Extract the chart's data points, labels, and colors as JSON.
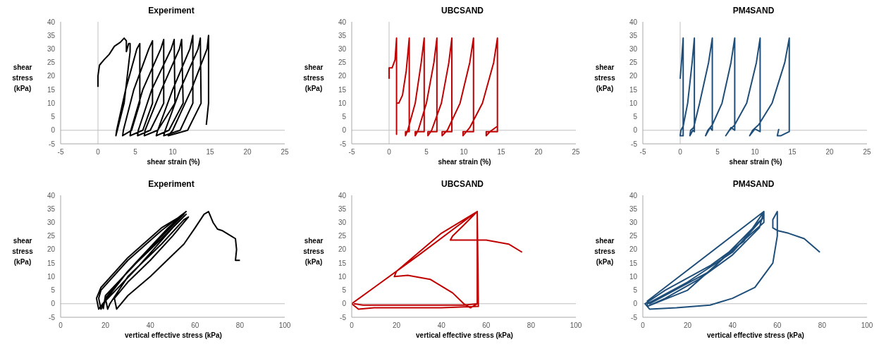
{
  "chart_data": [
    {
      "type": "line",
      "title": "Experiment",
      "xlabel": "shear strain (%)",
      "ylabel": "shear stress (kPa)",
      "xlim": [
        -5,
        25
      ],
      "xticks": [
        -5,
        0,
        5,
        10,
        15,
        20,
        25
      ],
      "ylim": [
        -5,
        40
      ],
      "yticks": [
        -5,
        0,
        5,
        10,
        15,
        20,
        25,
        30,
        35,
        40
      ],
      "marker": "none",
      "ref_lines": [
        {
          "axis": "x",
          "value": 0,
          "color": "#bfbfbf"
        },
        {
          "axis": "y",
          "value": 0,
          "color": "#bfbfbf"
        }
      ],
      "series": [
        {
          "color": "#000000",
          "x": [
            0,
            0,
            0.2,
            0.8,
            1.5,
            2.2,
            3,
            3.5,
            3.8,
            3.8,
            4.1,
            4.3,
            4.3,
            3.5,
            2.4,
            2.5,
            3.7,
            5.2,
            5.6,
            5.6,
            4.5,
            3.3,
            3.4,
            4.8,
            6.8,
            7.3,
            7.3,
            6,
            4.3,
            4.4,
            6,
            8.4,
            8.8,
            8.8,
            7,
            5.3,
            5.4,
            7.2,
            9.8,
            10.2,
            10.3,
            8,
            6.2,
            6.3,
            8.5,
            10.9,
            11.2,
            11.4,
            9.5,
            7.8,
            8,
            10,
            12.3,
            12.7,
            12.7,
            11,
            8.8,
            9,
            11,
            13.4,
            13.7,
            13.8,
            12,
            9.4,
            10,
            12.5,
            14.6,
            14.8,
            14.8,
            14.5
          ],
          "values": [
            16,
            20,
            24,
            26,
            28,
            31,
            32.5,
            34,
            33,
            29,
            32,
            32,
            29,
            10,
            -2,
            0,
            15,
            30,
            32,
            10,
            0,
            -2,
            0,
            15,
            30,
            33,
            10,
            0,
            -2,
            0,
            15,
            30,
            33.5,
            10,
            0,
            -2,
            0,
            15,
            30,
            33.5,
            10,
            0,
            -2,
            0,
            15,
            30,
            33.5,
            10,
            0,
            -2,
            0,
            15,
            30,
            35,
            10,
            0,
            -2,
            0,
            15,
            30,
            34,
            10,
            0,
            -2,
            0,
            15,
            30,
            35,
            10,
            2
          ]
        }
      ]
    },
    {
      "type": "line",
      "title": "UBCSAND",
      "xlabel": "shear strain (%)",
      "ylabel": "shear stress (kPa)",
      "xlim": [
        -5,
        25
      ],
      "xticks": [
        -5,
        0,
        5,
        10,
        15,
        20,
        25
      ],
      "ylim": [
        -5,
        40
      ],
      "yticks": [
        -5,
        0,
        5,
        10,
        15,
        20,
        25,
        30,
        35,
        40
      ],
      "marker": "none",
      "ref_lines": [
        {
          "axis": "x",
          "value": 0,
          "color": "#bfbfbf"
        },
        {
          "axis": "y",
          "value": 0,
          "color": "#bfbfbf"
        }
      ],
      "series": [
        {
          "color": "#c00000",
          "x": [
            0,
            0,
            0.4,
            0.8,
            1,
            1,
            1,
            1.3,
            1.8,
            2.3,
            2.7,
            2.7,
            2.2,
            2.2,
            2.5,
            3.5,
            4.3,
            4.7,
            4.7,
            3.5,
            3.5,
            3.9,
            5,
            6,
            6.4,
            6.4,
            5.2,
            5.2,
            5.7,
            7,
            8,
            8.4,
            8.4,
            7.1,
            7.1,
            7.8,
            9.5,
            10.8,
            11.3,
            11.3,
            9.9,
            9.9,
            10.8,
            12.5,
            14,
            14.5,
            14.5,
            13,
            13,
            13.5,
            14.5
          ],
          "values": [
            19,
            23,
            23,
            26,
            34,
            -1.5,
            10,
            10,
            13,
            22,
            34,
            -0.5,
            -0.5,
            -2,
            0,
            10,
            25,
            34,
            -0.5,
            -0.5,
            -2,
            0,
            10,
            25,
            34,
            -0.5,
            -0.5,
            -2,
            0,
            10,
            25,
            34,
            -0.5,
            -0.5,
            -2,
            0,
            10,
            25,
            34,
            -0.5,
            -0.5,
            -2,
            1,
            10,
            25,
            34,
            -0.5,
            -0.5,
            -2,
            -0.5,
            1.5
          ]
        }
      ]
    },
    {
      "type": "line",
      "title": "PM4SAND",
      "xlabel": "shear strain (%)",
      "ylabel": "shear stress (kPa)",
      "xlim": [
        -5,
        25
      ],
      "xticks": [
        -5,
        0,
        5,
        10,
        15,
        20,
        25
      ],
      "ylim": [
        -5,
        40
      ],
      "yticks": [
        -5,
        0,
        5,
        10,
        15,
        20,
        25,
        30,
        35,
        40
      ],
      "marker": "none",
      "ref_lines": [
        {
          "axis": "x",
          "value": 0,
          "color": "#bfbfbf"
        },
        {
          "axis": "y",
          "value": 0,
          "color": "#bfbfbf"
        }
      ],
      "series": [
        {
          "color": "#1f4e79",
          "x": [
            0,
            0.2,
            0.4,
            0.4,
            0,
            0.1,
            0.4,
            1,
            1.6,
            1.9,
            1.9,
            1.7,
            1.3,
            1.4,
            1.8,
            2.6,
            3.8,
            4.3,
            4.3,
            4,
            3.4,
            3.7,
            4.3,
            5.6,
            6.8,
            7.3,
            7.3,
            6.8,
            6.1,
            6.6,
            7.3,
            8.9,
            10.2,
            10.7,
            10.7,
            10,
            9.3,
            9.7,
            10.5,
            12.3,
            14,
            14.6,
            14.6,
            13.5,
            13,
            13.2
          ],
          "values": [
            19,
            26,
            34,
            -2,
            -2,
            0,
            1.5,
            10,
            25,
            34,
            -0.5,
            0,
            -2,
            0,
            1,
            10,
            25,
            34,
            0,
            1,
            -2,
            0,
            2,
            10,
            25,
            34,
            0,
            1,
            -2,
            0,
            2,
            10,
            25,
            34,
            -0.5,
            0.5,
            -2,
            0,
            2,
            10,
            25,
            34,
            -0.5,
            -2,
            -2,
            0.5
          ]
        }
      ]
    },
    {
      "type": "line",
      "title": "Experiment",
      "xlabel": "vertical effective stress (kPa)",
      "ylabel": "shear stress (kPa)",
      "xlim": [
        0,
        100
      ],
      "xticks": [
        0,
        20,
        40,
        60,
        80,
        100
      ],
      "ylim": [
        -5,
        40
      ],
      "yticks": [
        -5,
        0,
        5,
        10,
        15,
        20,
        25,
        30,
        35,
        40
      ],
      "marker": "none",
      "ref_lines": [
        {
          "axis": "y",
          "value": 0,
          "color": "#bfbfbf"
        }
      ],
      "series": [
        {
          "color": "#000000",
          "x": [
            80,
            78,
            78.5,
            78,
            76,
            72,
            70,
            68,
            66,
            64,
            60,
            55,
            50,
            40,
            30,
            25,
            24,
            30,
            40,
            50,
            57,
            55,
            45,
            30,
            22,
            21,
            20,
            30,
            45,
            56,
            50,
            35,
            20,
            18,
            17,
            18,
            30,
            45,
            56,
            48,
            30,
            17,
            16,
            18,
            30,
            45,
            55,
            44,
            20,
            19
          ],
          "values": [
            16,
            16,
            20,
            24,
            25,
            27,
            27.5,
            30,
            34,
            33,
            28,
            22,
            18,
            10,
            3,
            -2,
            2,
            8,
            16,
            25,
            32,
            31,
            22,
            10,
            0,
            -2,
            2,
            12,
            24,
            33,
            28,
            14,
            1,
            -2,
            2,
            5,
            16,
            27,
            34,
            28,
            12,
            -2,
            2,
            6,
            17,
            28,
            33,
            24,
            3,
            -2
          ]
        }
      ]
    },
    {
      "type": "line",
      "title": "UBCSAND",
      "xlabel": "vertical effective stress (kPa)",
      "ylabel": "shear stress (kPa)",
      "xlim": [
        0,
        100
      ],
      "xticks": [
        0,
        20,
        40,
        60,
        80,
        100
      ],
      "ylim": [
        -5,
        40
      ],
      "yticks": [
        -5,
        0,
        5,
        10,
        15,
        20,
        25,
        30,
        35,
        40
      ],
      "marker": "none",
      "ref_lines": [
        {
          "axis": "y",
          "value": 0,
          "color": "#bfbfbf"
        }
      ],
      "series": [
        {
          "color": "#c00000",
          "x": [
            76,
            70,
            60,
            50,
            44,
            45,
            50,
            56,
            56,
            53,
            50,
            45,
            35,
            25,
            19,
            20,
            30,
            40,
            56,
            56.5,
            40,
            10,
            3,
            0,
            10,
            30,
            55,
            56,
            56.5,
            50,
            5,
            1
          ],
          "values": [
            19,
            22,
            23.5,
            23.5,
            23.5,
            25,
            29,
            34,
            0,
            -1.5,
            0,
            4,
            9,
            10.5,
            10,
            12,
            19,
            26,
            34,
            -1,
            -1.5,
            -1.5,
            -2,
            0,
            6,
            18,
            33.5,
            34,
            0,
            -0.5,
            -0.5,
            0
          ]
        }
      ]
    },
    {
      "type": "line",
      "title": "PM4SAND",
      "xlabel": "vertical effective stress (kPa)",
      "ylabel": "shear stress (kPa)",
      "xlim": [
        0,
        100
      ],
      "xticks": [
        0,
        20,
        40,
        60,
        80,
        100
      ],
      "ylim": [
        -5,
        40
      ],
      "yticks": [
        -5,
        0,
        5,
        10,
        15,
        20,
        25,
        30,
        35,
        40
      ],
      "marker": "none",
      "ref_lines": [
        {
          "axis": "y",
          "value": 0,
          "color": "#bfbfbf"
        }
      ],
      "series": [
        {
          "color": "#1f4e79",
          "x": [
            79,
            72,
            65,
            60,
            58,
            58,
            60,
            60,
            58,
            50,
            40,
            30,
            15,
            3,
            1,
            10,
            30,
            45,
            54,
            52,
            40,
            25,
            10,
            2,
            2,
            20,
            40,
            54,
            30,
            3,
            2,
            54,
            54,
            20,
            2
          ],
          "values": [
            19,
            24,
            26,
            27,
            28,
            31,
            34,
            25,
            15,
            6,
            2,
            -0.5,
            -1.5,
            -2,
            0,
            5,
            14,
            23,
            34,
            28,
            18,
            9,
            2,
            -1,
            0,
            8,
            19,
            32,
            12,
            0,
            1,
            34,
            30,
            5,
            -1
          ]
        }
      ]
    }
  ]
}
